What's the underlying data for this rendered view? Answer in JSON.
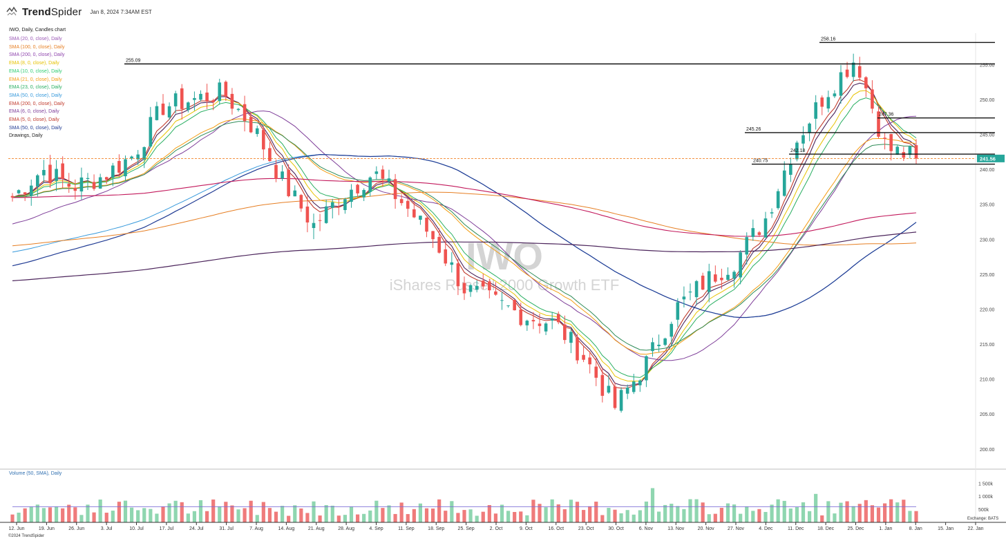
{
  "header": {
    "brand_bold": "Trend",
    "brand_light": "Spider",
    "timestamp": "Jan 8, 2024 7:34AM EST",
    "chart_meta": "IWO, Daily, Candles chart"
  },
  "legend": [
    {
      "label": "SMA (20, 0, close), Daily",
      "color": "#9b59b6"
    },
    {
      "label": "SMA (100, 0, close), Daily",
      "color": "#e67e22"
    },
    {
      "label": "SMA (200, 0, close), Daily",
      "color": "#8e44ad"
    },
    {
      "label": "EMA (8, 0, close), Daily",
      "color": "#e6c200"
    },
    {
      "label": "EMA (10, 0, close), Daily",
      "color": "#2ecc71"
    },
    {
      "label": "EMA (21, 0, close), Daily",
      "color": "#f39c12"
    },
    {
      "label": "EMA (23, 0, close), Daily",
      "color": "#27ae60"
    },
    {
      "label": "SMA (50, 0, close), Daily",
      "color": "#3498db"
    },
    {
      "label": "EMA (200, 0, close), Daily",
      "color": "#c0392b"
    },
    {
      "label": "EMA (6, 0, close), Daily",
      "color": "#7d3c98"
    },
    {
      "label": "EMA (5, 0, close), Daily",
      "color": "#c0392b"
    },
    {
      "label": "SMA (50, 0, close), Daily",
      "color": "#1f3a93"
    },
    {
      "label": "Drawings, Daily",
      "color": "#222222"
    }
  ],
  "volume_label": "Volume (50, SMA), Daily",
  "copyright": "©2024 TrendSpider",
  "exchange": "Exchange: BATS",
  "watermark": {
    "symbol": "IWO",
    "name": "iShares Russell 2000 Growth ETF"
  },
  "colors": {
    "up": "#26a69a",
    "down": "#ef5350",
    "last_price_bg": "#26a69a"
  },
  "chart_data": {
    "type": "candlestick",
    "symbol": "IWO",
    "interval": "Daily",
    "ylim": [
      198,
      258.5
    ],
    "y_ticks": [
      200,
      205,
      210,
      215,
      220,
      225,
      230,
      235,
      240,
      245,
      250,
      255
    ],
    "y_tick_labels": [
      "200.00",
      "205.00",
      "210.00",
      "215.00",
      "220.00",
      "225.00",
      "230.00",
      "235.00",
      "240.00",
      "245.00",
      "250.00",
      "255.00"
    ],
    "x_tick_labels": [
      "12. Jun",
      "19. Jun",
      "26. Jun",
      "3. Jul",
      "10. Jul",
      "17. Jul",
      "24. Jul",
      "31. Jul",
      "7. Aug",
      "14. Aug",
      "21. Aug",
      "28. Aug",
      "4. Sep",
      "11. Sep",
      "18. Sep",
      "25. Sep",
      "2. Oct",
      "9. Oct",
      "16. Oct",
      "23. Oct",
      "30. Oct",
      "6. Nov",
      "13. Nov",
      "20. Nov",
      "27. Nov",
      "4. Dec",
      "11. Dec",
      "18. Dec",
      "25. Dec",
      "1. Jan",
      "8. Jan",
      "15. Jan",
      "22. Jan"
    ],
    "last_price": 241.56,
    "last_price_label": "241.56",
    "horizontal_levels": [
      {
        "value": 258.16,
        "label": "258.16"
      },
      {
        "value": 255.09,
        "label": "255.09"
      },
      {
        "value": 247.36,
        "label": "247.36"
      },
      {
        "value": 245.26,
        "label": "245.26"
      },
      {
        "value": 242.18,
        "label": "242.18"
      },
      {
        "value": 240.75,
        "label": "240.75"
      }
    ],
    "weekly_closes": [
      236,
      240,
      237.5,
      239,
      242,
      249,
      250,
      251,
      246,
      238,
      232,
      236.5,
      239.5,
      235,
      230,
      223,
      221,
      219,
      218,
      213,
      206,
      212,
      220,
      224,
      227,
      233,
      244,
      251,
      256,
      243,
      241.6
    ],
    "volume_axis": {
      "ylim": [
        0,
        1800000
      ],
      "tick_labels": [
        "500k",
        "1 000k",
        "1 500k"
      ],
      "ticks": [
        500000,
        1000000,
        1500000
      ]
    },
    "volume_sma_level": 600000
  }
}
